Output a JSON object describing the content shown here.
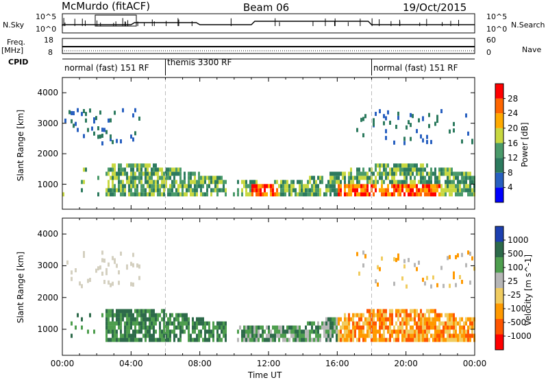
{
  "header": {
    "site": "McMurdo (fitACF)",
    "beam": "Beam 06",
    "date": "19/Oct/2015"
  },
  "top_panel": {
    "left_label_1": "N.Sky",
    "left_label_2": "Freq.",
    "left_label_3": "[MHz]",
    "left_label_4": "CPID",
    "right_label_1": "N.Search",
    "right_label_2": "Nave",
    "nsky_ticks": [
      "10^5",
      "10^0"
    ],
    "nsearch_ticks": [
      "10^5",
      "10^0"
    ],
    "freq_ticks": [
      "18",
      "8"
    ],
    "nave_ticks": [
      "60",
      "0"
    ],
    "cpid_segments": [
      "normal (fast) 151 RF",
      "themis 3300 RF",
      "normal (fast) 151 RF"
    ]
  },
  "chart_data": [
    {
      "type": "heatmap",
      "title": "",
      "xlabel": "Time UT",
      "ylabel": "Slant Range [km]",
      "xticks": [
        "00:00",
        "04:00",
        "08:00",
        "12:00",
        "16:00",
        "20:00",
        "00:00"
      ],
      "yticks": [
        "1000",
        "2000",
        "3000",
        "4000"
      ],
      "ylim": [
        180,
        4500
      ],
      "xlim_hours": [
        0,
        24
      ],
      "colorbar_label": "Power [dB]",
      "colorbar_ticks": [
        "28",
        "24",
        "20",
        "16",
        "12",
        "8",
        "4"
      ],
      "colorbar_range": [
        0,
        30
      ],
      "colors": [
        "#0000ff",
        "#2860c0",
        "#2c7a5e",
        "#4a9a6a",
        "#c8d840",
        "#ffaa00",
        "#ff6600",
        "#ff0000"
      ]
    },
    {
      "type": "heatmap",
      "title": "",
      "xlabel": "Time UT",
      "ylabel": "Slant Range [km]",
      "xticks": [
        "00:00",
        "04:00",
        "08:00",
        "12:00",
        "16:00",
        "20:00",
        "00:00"
      ],
      "yticks": [
        "1000",
        "2000",
        "3000",
        "4000"
      ],
      "ylim": [
        180,
        4500
      ],
      "xlim_hours": [
        0,
        24
      ],
      "colorbar_label": "Velocity [m s^-1]",
      "colorbar_ticks": [
        "1000",
        "500",
        "100",
        "25",
        "-25",
        "-100",
        "-500",
        "-1000"
      ],
      "colors": [
        "#1c3fb0",
        "#2d6a4a",
        "#4e9e4e",
        "#b6b6b6",
        "#f0cc60",
        "#ff9900",
        "#ff5500",
        "#ff0000"
      ]
    }
  ]
}
